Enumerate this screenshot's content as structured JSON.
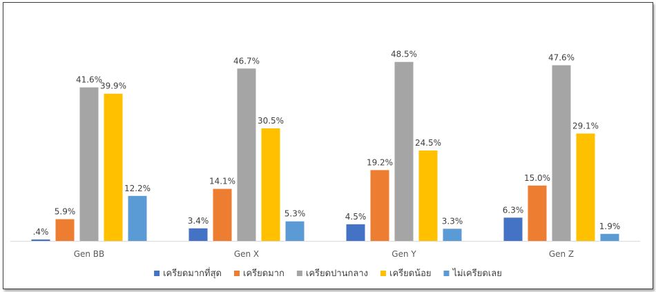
{
  "chart_data": {
    "type": "bar",
    "categories": [
      "Gen BB",
      "Gen X",
      "Gen Y",
      "Gen Z"
    ],
    "series": [
      {
        "name": "เครียดมากที่สุด",
        "color": "#4472C4",
        "values": [
          0.4,
          3.4,
          4.5,
          6.3
        ],
        "labels": [
          ".4%",
          "3.4%",
          "4.5%",
          "6.3%"
        ]
      },
      {
        "name": "เครียดมาก",
        "color": "#ED7D31",
        "values": [
          5.9,
          14.1,
          19.2,
          15.0
        ],
        "labels": [
          "5.9%",
          "14.1%",
          "19.2%",
          "15.0%"
        ]
      },
      {
        "name": "เครียดปานกลาง",
        "color": "#A5A5A5",
        "values": [
          41.6,
          46.7,
          48.5,
          47.6
        ],
        "labels": [
          "41.6%",
          "46.7%",
          "48.5%",
          "47.6%"
        ]
      },
      {
        "name": "เครียดน้อย",
        "color": "#FFC000",
        "values": [
          39.9,
          30.5,
          24.5,
          29.1
        ],
        "labels": [
          "39.9%",
          "30.5%",
          "24.5%",
          "29.1%"
        ]
      },
      {
        "name": "ไม่เครียดเลย",
        "color": "#5B9BD5",
        "values": [
          12.2,
          5.3,
          3.3,
          1.9
        ],
        "labels": [
          "12.2%",
          "5.3%",
          "3.3%",
          "1.9%"
        ]
      }
    ],
    "ylim": [
      0,
      52
    ],
    "grid": false,
    "legend_position": "bottom",
    "title": "",
    "xlabel": "",
    "ylabel": ""
  }
}
